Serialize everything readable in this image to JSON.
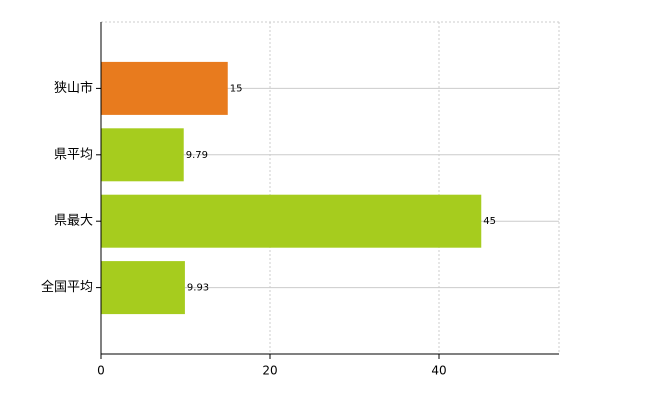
{
  "chart_data": {
    "type": "bar",
    "orientation": "horizontal",
    "categories": [
      "狭山市",
      "県平均",
      "県最大",
      "全国平均"
    ],
    "values": [
      15,
      9.79,
      45,
      9.93
    ],
    "colors": [
      "#e87b1e",
      "#a6cc1e",
      "#a6cc1e",
      "#a6cc1e"
    ],
    "xlim": [
      0,
      54.2
    ],
    "xticks": [
      0,
      20,
      40
    ],
    "grid": true
  }
}
